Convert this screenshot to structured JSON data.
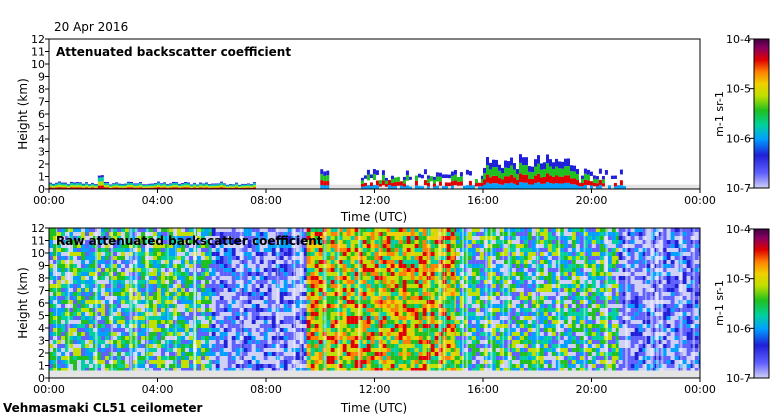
{
  "date": "20 Apr 2016",
  "footer": "Vehmasmaki CL51 ceilometer",
  "colors": {
    "ground": "#e4e4e4",
    "colormap": [
      "#d0d0f6",
      "#6060ff",
      "#2020d8",
      "#00a0ff",
      "#00d0a0",
      "#20c020",
      "#c0e000",
      "#f0d000",
      "#ff8000",
      "#e00000",
      "#8a0060",
      "#400040"
    ]
  },
  "chart_data": [
    {
      "type": "heatmap",
      "title": "Attenuated backscatter coefficient",
      "xlabel": "Time (UTC)",
      "ylabel": "Height (km)",
      "x_ticks": [
        "00:00",
        "04:00",
        "08:00",
        "12:00",
        "16:00",
        "20:00",
        "00:00"
      ],
      "y_ticks": [
        "0",
        "1",
        "2",
        "3",
        "4",
        "5",
        "6",
        "7",
        "8",
        "9",
        "10",
        "11",
        "12"
      ],
      "ylim": [
        0,
        12
      ],
      "xlim_hours": [
        0,
        24
      ],
      "colorbar": {
        "ticks": [
          "10-7",
          "10-6",
          "10-5",
          "10-4"
        ],
        "label": "m-1 sr-1",
        "range_log10": [
          -7,
          -4
        ]
      },
      "features": [
        {
          "kind": "boundary-layer",
          "t0": 0.0,
          "t1": 7.6,
          "top_km": 0.6
        },
        {
          "kind": "boundary-layer",
          "t0": 1.8,
          "t1": 2.0,
          "top_km": 1.4
        },
        {
          "kind": "low-cloud",
          "t0": 10.0,
          "t1": 10.3,
          "top_km": 1.7
        },
        {
          "kind": "scattered-cloud",
          "t0": 11.5,
          "t1": 16.0,
          "top_km": 1.6
        },
        {
          "kind": "cloud",
          "t0": 16.0,
          "t1": 19.5,
          "top_km": 2.8
        },
        {
          "kind": "scattered-cloud",
          "t0": 19.5,
          "t1": 21.2,
          "top_km": 1.8
        }
      ]
    },
    {
      "type": "heatmap",
      "title": "Raw attenuated backscatter coefficient",
      "xlabel": "Time (UTC)",
      "ylabel": "Height (km)",
      "x_ticks": [
        "00:00",
        "04:00",
        "08:00",
        "12:00",
        "16:00",
        "20:00",
        "00:00"
      ],
      "y_ticks": [
        "0",
        "1",
        "2",
        "3",
        "4",
        "5",
        "6",
        "7",
        "8",
        "9",
        "10",
        "11",
        "12"
      ],
      "ylim": [
        0,
        12
      ],
      "xlim_hours": [
        0,
        24
      ],
      "colorbar": {
        "ticks": [
          "10-7",
          "10-6",
          "10-5",
          "10-4"
        ],
        "label": "m-1 sr-1",
        "range_log10": [
          -7,
          -4
        ]
      },
      "features": [
        {
          "kind": "noisy-signal",
          "t0": 0.0,
          "t1": 6.0,
          "level": "green"
        },
        {
          "kind": "noisy-signal",
          "t0": 6.0,
          "t1": 9.5,
          "level": "blue"
        },
        {
          "kind": "noisy-signal",
          "t0": 9.5,
          "t1": 15.0,
          "level": "yellow-red"
        },
        {
          "kind": "noisy-signal",
          "t0": 15.0,
          "t1": 21.0,
          "level": "green"
        },
        {
          "kind": "noisy-signal",
          "t0": 21.0,
          "t1": 24.0,
          "level": "blue"
        }
      ]
    }
  ]
}
